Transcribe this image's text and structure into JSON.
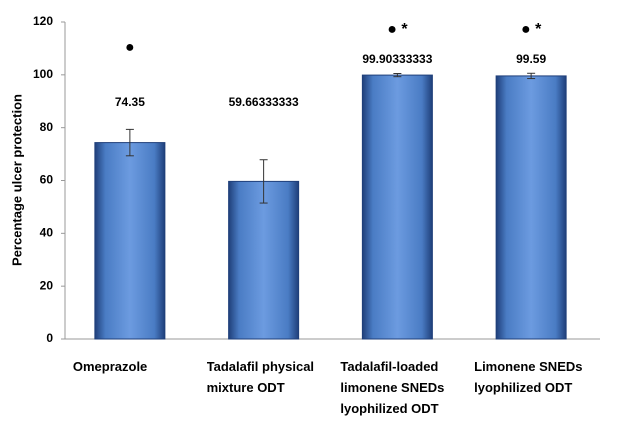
{
  "chart_data": {
    "type": "bar",
    "y_label": "Percentage ulcer protection",
    "categories": [
      "Omeprazole",
      "Tadalafil physical mixture ODT",
      "Tadalafil-loaded limonene SNEDs lyophilized ODT",
      "Limonene SNEDs lyophilized ODT"
    ],
    "values": [
      74.35,
      59.66333333,
      99.90333333,
      99.59
    ],
    "errors": [
      5,
      8.2,
      0.6,
      1
    ],
    "significance": [
      "●",
      null,
      "● *",
      "● *"
    ],
    "color": "#4a7cc4",
    "ylim": [
      0,
      120
    ],
    "yticks": [
      0,
      20,
      40,
      60,
      80,
      100,
      120
    ]
  }
}
